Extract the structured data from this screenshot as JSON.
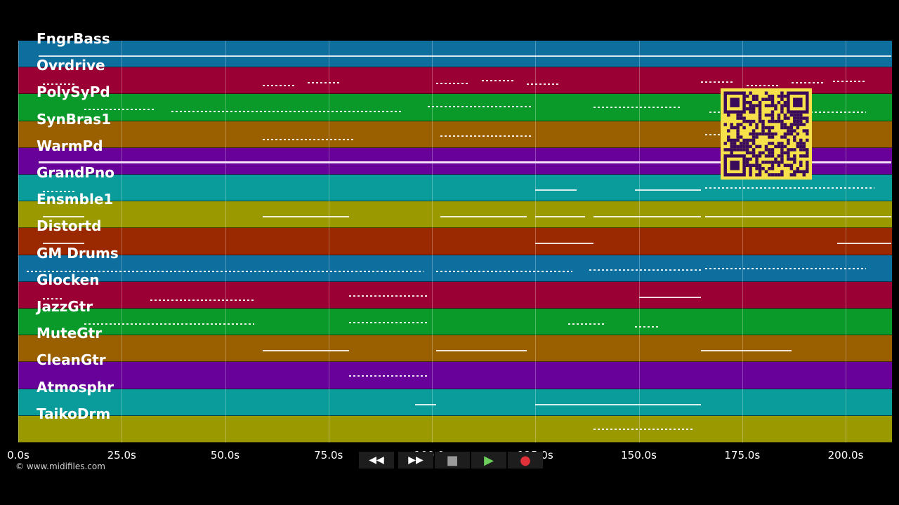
{
  "tracks": [
    {
      "name": "FngrBass",
      "color": "#0e6e9e"
    },
    {
      "name": "Ovrdrive",
      "color": "#9b0034"
    },
    {
      "name": "PolySyPd",
      "color": "#0a9a2a"
    },
    {
      "name": "SynBras1",
      "color": "#9a6000"
    },
    {
      "name": "WarmPd",
      "color": "#68009a"
    },
    {
      "name": "GrandPno",
      "color": "#0a9b9b"
    },
    {
      "name": "Ensmble1",
      "color": "#9a9a00"
    },
    {
      "name": "Distortd",
      "color": "#9a2800"
    },
    {
      "name": "GM Drums",
      "color": "#0e6e9e"
    },
    {
      "name": "Glocken",
      "color": "#9b0034"
    },
    {
      "name": "JazzGtr",
      "color": "#0a9a2a"
    },
    {
      "name": "MuteGtr",
      "color": "#9a6000"
    },
    {
      "name": "CleanGtr",
      "color": "#68009a"
    },
    {
      "name": "Atmosphr",
      "color": "#0a9b9b"
    },
    {
      "name": "TaikoDrm",
      "color": "#9a9a00"
    }
  ],
  "time_axis": {
    "ticks": [
      "0.0s",
      "25.0s",
      "50.0s",
      "75.0s",
      "100.0s",
      "125.0s",
      "150.0s",
      "175.0s",
      "200.0s"
    ],
    "tick_values": [
      0,
      25,
      50,
      75,
      100,
      125,
      150,
      175,
      200
    ],
    "max_seconds": 211.2
  },
  "notes": [
    [
      0,
      5,
      211,
      "line"
    ],
    [
      1,
      6,
      14,
      "dash"
    ],
    [
      1,
      59,
      67,
      "dash"
    ],
    [
      1,
      70,
      78,
      "dash"
    ],
    [
      1,
      101,
      109,
      "dash"
    ],
    [
      1,
      112,
      120,
      "dash"
    ],
    [
      1,
      123,
      131,
      "dash"
    ],
    [
      1,
      165,
      173,
      "dash"
    ],
    [
      1,
      176,
      184,
      "dash"
    ],
    [
      1,
      187,
      195,
      "dash"
    ],
    [
      1,
      197,
      205,
      "dash"
    ],
    [
      2,
      16,
      33,
      "dash"
    ],
    [
      2,
      37,
      93,
      "dash"
    ],
    [
      2,
      99,
      124,
      "dash"
    ],
    [
      2,
      139,
      160,
      "dash"
    ],
    [
      2,
      167,
      205,
      "dash"
    ],
    [
      3,
      59,
      81,
      "dash"
    ],
    [
      3,
      102,
      124,
      "dash"
    ],
    [
      3,
      166,
      170,
      "dash"
    ],
    [
      4,
      5,
      211,
      "line"
    ],
    [
      5,
      6,
      14,
      "dash"
    ],
    [
      5,
      125,
      135,
      "line"
    ],
    [
      5,
      149,
      165,
      "line"
    ],
    [
      5,
      166,
      207,
      "dash"
    ],
    [
      6,
      6,
      16,
      "line"
    ],
    [
      6,
      59,
      80,
      "line"
    ],
    [
      6,
      102,
      123,
      "line"
    ],
    [
      6,
      125,
      137,
      "line"
    ],
    [
      6,
      139,
      165,
      "line"
    ],
    [
      6,
      166,
      188,
      "line"
    ],
    [
      6,
      188,
      211,
      "line"
    ],
    [
      7,
      6,
      16,
      "line"
    ],
    [
      7,
      125,
      139,
      "line"
    ],
    [
      7,
      198,
      211,
      "line"
    ],
    [
      8,
      2,
      98,
      "dash"
    ],
    [
      8,
      101,
      134,
      "dash"
    ],
    [
      8,
      138,
      165,
      "dash"
    ],
    [
      8,
      166,
      205,
      "dash"
    ],
    [
      9,
      6,
      11,
      "dash"
    ],
    [
      9,
      32,
      57,
      "dash"
    ],
    [
      9,
      80,
      99,
      "dash"
    ],
    [
      9,
      150,
      165,
      "line"
    ],
    [
      10,
      16,
      57,
      "dash"
    ],
    [
      10,
      80,
      99,
      "dash"
    ],
    [
      10,
      133,
      142,
      "dash"
    ],
    [
      10,
      149,
      155,
      "dash"
    ],
    [
      11,
      59,
      80,
      "line"
    ],
    [
      11,
      101,
      123,
      "line"
    ],
    [
      11,
      165,
      187,
      "line"
    ],
    [
      12,
      80,
      99,
      "dash"
    ],
    [
      13,
      96,
      101,
      "line"
    ],
    [
      13,
      125,
      165,
      "line"
    ],
    [
      14,
      139,
      163,
      "dash"
    ]
  ],
  "credit": "© www.midifiles.com",
  "controls": [
    {
      "name": "rewind-button",
      "glyph": "◀◀"
    },
    {
      "name": "fast-forward-button",
      "glyph": "▶▶"
    },
    {
      "name": "stop-button",
      "glyph": "■"
    },
    {
      "name": "play-button",
      "glyph": "▶"
    },
    {
      "name": "record-button",
      "glyph": "●"
    }
  ],
  "colors": {
    "play": "#6ccf5a",
    "record": "#e0303a",
    "qr_bg": "#f6e14b",
    "qr_fg": "#3a0b5a"
  }
}
